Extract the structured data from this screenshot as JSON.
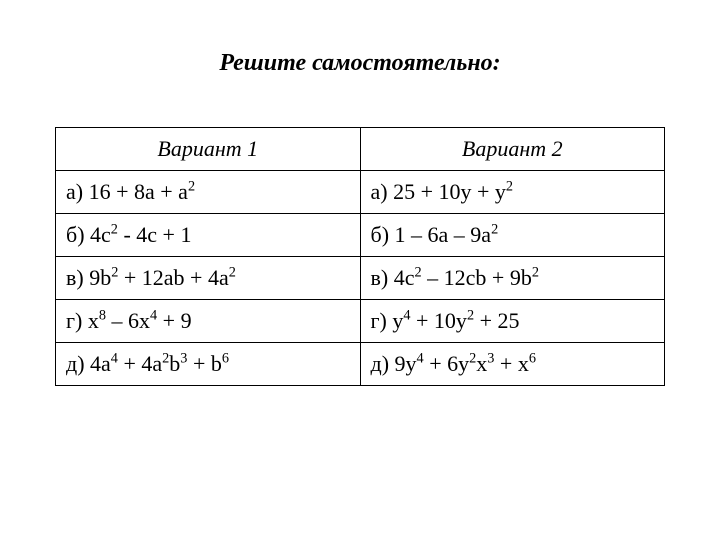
{
  "title": "Решите самостоятельно:",
  "table": {
    "headers": [
      "Вариант 1",
      "Вариант 2"
    ],
    "rows": [
      {
        "col1": {
          "label": "а)",
          "base": "  16 + 8a + a",
          "sup1": "2",
          "rest": ""
        },
        "col2": {
          "label": "а)",
          "base": "  25 + 10y + y",
          "sup1": "2",
          "rest": ""
        }
      },
      {
        "col1": {
          "label": "б)",
          "base": "  4c",
          "sup1": "2",
          "mid": " - 4c + 1"
        },
        "col2": {
          "label": "б)",
          "base": "  1 – 6a – 9a",
          "sup1": "2",
          "rest": ""
        }
      },
      {
        "col1": {
          "label": "в)",
          "base": "  9b",
          "sup1": "2",
          "mid": " + 12ab + 4a",
          "sup2": "2"
        },
        "col2": {
          "label": "в)",
          "base": "  4c",
          "sup1": "2",
          "mid": " – 12cb + 9b",
          "sup2": "2"
        }
      },
      {
        "col1": {
          "label": "г)",
          "base": "  x",
          "sup1": "8",
          "mid": " – 6x",
          "sup2": "4",
          "rest": " + 9"
        },
        "col2": {
          "label": "г)",
          "base": "  y",
          "sup1": "4",
          "mid": " + 10y",
          "sup2": "2",
          "rest": " + 25"
        }
      },
      {
        "col1": {
          "label": "д)",
          "base": "  4a",
          "sup1": "4",
          "mid": " + 4a",
          "sup2": "2",
          "mid2": "b",
          "sup3": "3",
          "mid3": " + b",
          "sup4": "6"
        },
        "col2": {
          "label": "д)",
          "base": "  9y",
          "sup1": "4",
          "mid": " + 6y",
          "sup2": "2",
          "mid2": "x",
          "sup3": "3",
          "mid3": " + x",
          "sup4": "6"
        }
      }
    ]
  }
}
